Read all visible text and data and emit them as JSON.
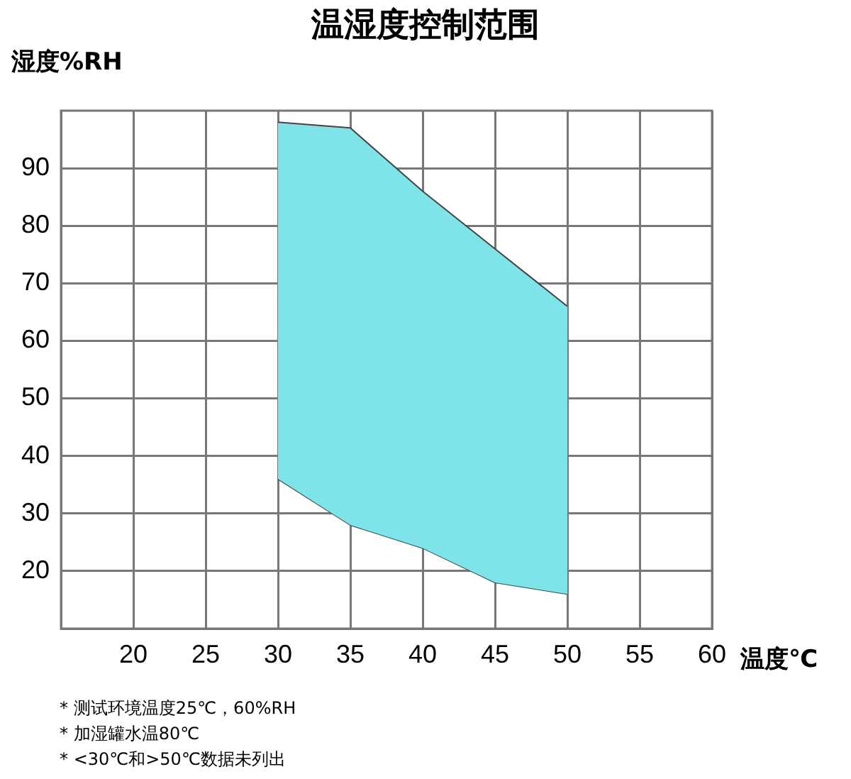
{
  "chart_data": {
    "type": "area",
    "title": "温湿度控制范围",
    "xlabel": "温度℃",
    "ylabel": "湿度%RH",
    "x": [
      30,
      35,
      40,
      45,
      50
    ],
    "series": [
      {
        "color": "#7fe3ea",
        "values": [
          98,
          97,
          86,
          76,
          66
        ]
      },
      {
        "type": "line",
        "color": "#444444",
        "values": [
          36,
          28,
          24,
          18,
          16
        ]
      }
    ],
    "xlim": [
      15,
      60
    ],
    "xticks": [
      20,
      25,
      30,
      35,
      40,
      45,
      50,
      55,
      60
    ],
    "ylim": [
      10,
      100
    ],
    "yticks": [
      20,
      30,
      40,
      50,
      60,
      70,
      80,
      90
    ],
    "grid": true,
    "legend": false,
    "annotations": [
      "*  测试环境温度25℃，60%RH",
      "*  加湿罐水温80℃",
      "*  <30℃和>50℃数据未列出"
    ]
  }
}
